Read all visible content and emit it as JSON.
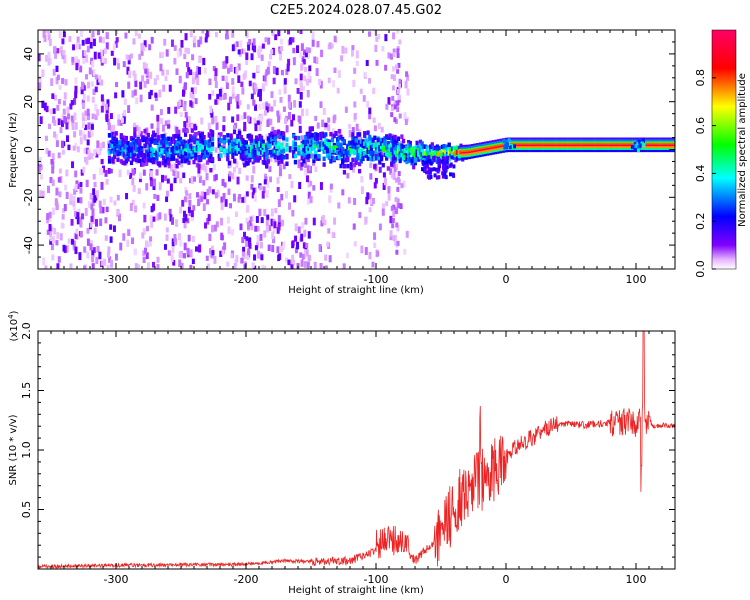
{
  "title": "C2E5.2024.028.07.45.G02",
  "spectrogram": {
    "xlabel": "Height of straight line (km)",
    "ylabel": "Frequency (Hz)",
    "xlim": [
      -360,
      130
    ],
    "ylim": [
      -50,
      50
    ],
    "xticks": [
      -300,
      -200,
      -100,
      0,
      100
    ],
    "yticks": [
      -40,
      -20,
      0,
      20,
      40
    ],
    "colorbar": {
      "label": "Normalized spectral amplitude",
      "range": [
        0.0,
        1.0
      ],
      "ticks": [
        "0.0",
        "0.2",
        "0.4",
        "0.6",
        "0.8"
      ]
    }
  },
  "chart_data": [
    {
      "type": "heatmap",
      "xlabel": "Height of straight line (km)",
      "ylabel": "Frequency (Hz)",
      "xlim": [
        -360,
        130
      ],
      "ylim": [
        -50,
        50
      ],
      "description_band": [
        {
          "x": -350,
          "f_center": 0,
          "f_halfwidth": 50,
          "amp": 0.25
        },
        {
          "x": -300,
          "f_center": 0,
          "f_halfwidth": 6,
          "amp": 0.35
        },
        {
          "x": -150,
          "f_center": 1,
          "f_halfwidth": 7,
          "amp": 0.45
        },
        {
          "x": -100,
          "f_center": 0,
          "f_halfwidth": 6,
          "amp": 0.5
        },
        {
          "x": -60,
          "f_center": -2,
          "f_halfwidth": 4,
          "amp": 0.6
        },
        {
          "x": -30,
          "f_center": -1,
          "f_halfwidth": 2,
          "amp": 0.8
        },
        {
          "x": 0,
          "f_center": 2,
          "f_halfwidth": 2,
          "amp": 1.0
        },
        {
          "x": 100,
          "f_center": 2,
          "f_halfwidth": 2,
          "amp": 1.0
        },
        {
          "x": 130,
          "f_center": 2,
          "f_halfwidth": 2,
          "amp": 1.0
        }
      ]
    },
    {
      "type": "line",
      "xlabel": "Height of straight line (km)",
      "ylabel": "SNR (10 * v/v)",
      "y_multiplier": "(x10^4)",
      "xlim": [
        -360,
        130
      ],
      "ylim": [
        0,
        20000
      ],
      "xticks": [
        -300,
        -200,
        -100,
        0,
        100
      ],
      "yticks": [
        "0.5",
        "1.0",
        "1.5",
        "2.0"
      ],
      "series": [
        {
          "color": "#ee2222",
          "x": [
            -360,
            -300,
            -250,
            -200,
            -170,
            -150,
            -120,
            -100,
            -80,
            -70,
            -60,
            -50,
            -40,
            -30,
            -20,
            -10,
            0,
            10,
            20,
            30,
            40,
            60,
            80,
            95,
            100,
            104,
            106,
            108,
            110,
            120,
            130
          ],
          "y": [
            200,
            300,
            350,
            400,
            700,
            600,
            700,
            1500,
            2000,
            700,
            1800,
            3000,
            5000,
            7000,
            7500,
            8200,
            9500,
            10500,
            11000,
            11800,
            12200,
            12100,
            12300,
            12500,
            12200,
            13000,
            14000,
            12500,
            12000,
            12100,
            12000
          ]
        }
      ]
    }
  ]
}
